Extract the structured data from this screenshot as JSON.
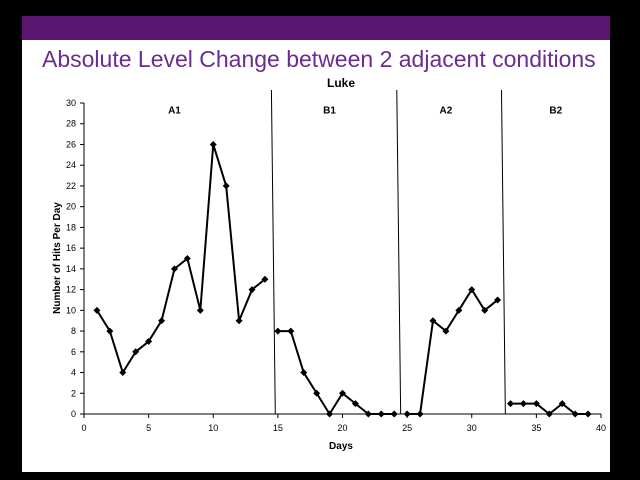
{
  "slide": {
    "title": "Absolute Level Change between 2 adjacent conditions",
    "bar_color": "#5b1670",
    "title_color": "#6a2c91"
  },
  "chart_data": {
    "type": "line",
    "title": "Luke",
    "xlabel": "Days",
    "ylabel": "Number of Hits Per Day",
    "xlim": [
      0,
      40
    ],
    "ylim": [
      0,
      30
    ],
    "xticks": [
      0,
      5,
      10,
      15,
      20,
      25,
      30,
      35,
      40
    ],
    "yticks": [
      0,
      2,
      4,
      6,
      8,
      10,
      12,
      14,
      16,
      18,
      20,
      22,
      24,
      26,
      28,
      30
    ],
    "grid": false,
    "line_color": "#000000",
    "phase_lines": [
      {
        "x_top": 14.5,
        "x_bottom": 14.8
      },
      {
        "x_top": 24.2,
        "x_bottom": 24.5
      },
      {
        "x_top": 32.3,
        "x_bottom": 32.6
      }
    ],
    "phases": [
      {
        "label": "A1",
        "x": 7
      },
      {
        "label": "B1",
        "x": 19
      },
      {
        "label": "A2",
        "x": 28
      },
      {
        "label": "B2",
        "x": 36.5
      }
    ],
    "series": [
      {
        "x": [
          1,
          2,
          3,
          4,
          5,
          6,
          7,
          8,
          9,
          10,
          11,
          12,
          13,
          14
        ],
        "y": [
          10,
          8,
          4,
          6,
          7,
          9,
          14,
          15,
          10,
          26,
          22,
          9,
          12,
          13
        ]
      },
      {
        "x": [
          15,
          16,
          17,
          18,
          19,
          20,
          21,
          22,
          23,
          24
        ],
        "y": [
          8,
          8,
          4,
          2,
          0,
          2,
          1,
          0,
          0,
          0
        ]
      },
      {
        "x": [
          25,
          26,
          27,
          28,
          29,
          30,
          31,
          32
        ],
        "y": [
          0,
          0,
          9,
          8,
          10,
          12,
          10,
          11
        ]
      },
      {
        "x": [
          33,
          34,
          35,
          36,
          37,
          38,
          39
        ],
        "y": [
          1,
          1,
          1,
          0,
          1,
          0,
          0
        ]
      }
    ]
  }
}
